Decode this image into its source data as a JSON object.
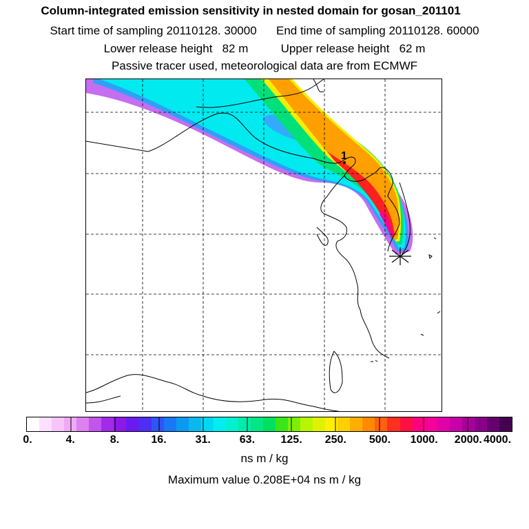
{
  "header": {
    "title": "Column-integrated emission sensitivity in nested domain for gosan_201101",
    "sampling": "Start time of sampling 20110128. 30000      End time of sampling 20110128. 60000",
    "release": "Lower release height   82 m          Upper release height   62 m",
    "tracer": "Passive tracer used, meteorological data are from ECMWF"
  },
  "map": {
    "receptor_marker": "star-icon",
    "label_marker": "1"
  },
  "colorbar": {
    "ticks": [
      "0.",
      "4.",
      "8.",
      "16.",
      "31.",
      "63.",
      "125.",
      "250.",
      "500.",
      "1000.",
      "2000.",
      "4000."
    ],
    "colors": [
      "#ffffff",
      "#fde0ff",
      "#f6c4fa",
      "#eeaaf5",
      "#dd80f0",
      "#c155ee",
      "#a22ae8",
      "#8c1ae6",
      "#6b1af0",
      "#4d2ef5",
      "#2f55f7",
      "#1878f5",
      "#0a9af0",
      "#0ab8f0",
      "#00d8f0",
      "#00eef0",
      "#00f0d0",
      "#00ecaa",
      "#00e682",
      "#00e060",
      "#3ae61a",
      "#7cf000",
      "#b8f500",
      "#e0f200",
      "#fff000",
      "#ffd000",
      "#ffae00",
      "#ff8a00",
      "#ff6010",
      "#ff3020",
      "#ff1040",
      "#ff0080",
      "#f5009a",
      "#e000a8",
      "#c800a8",
      "#a8009a",
      "#88008a",
      "#66006e",
      "#440050"
    ],
    "units": "ns m / kg",
    "maximum": "Maximum value  0.208E+04 ns m / kg"
  }
}
